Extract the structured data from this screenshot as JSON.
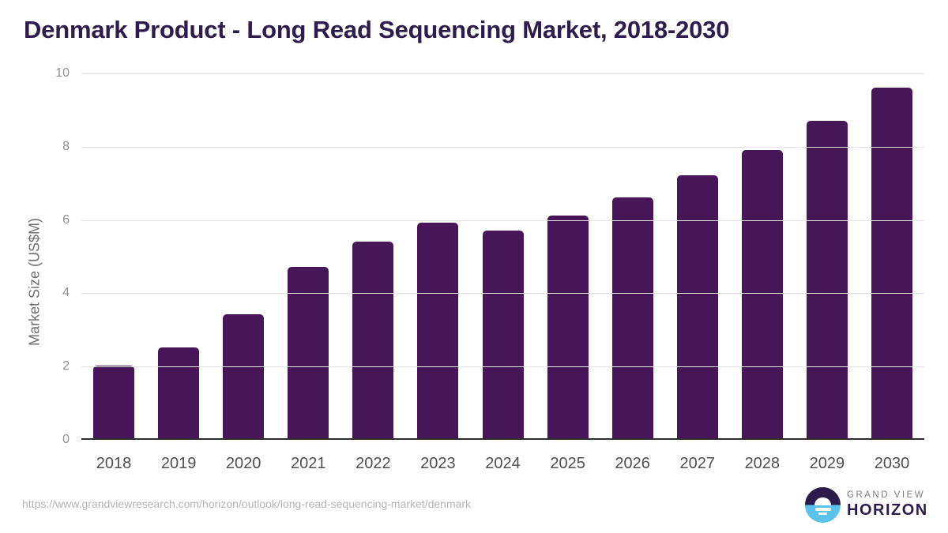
{
  "title": "Denmark Product - Long Read Sequencing Market, 2018-2030",
  "chart_data": {
    "type": "bar",
    "categories": [
      "2018",
      "2019",
      "2020",
      "2021",
      "2022",
      "2023",
      "2024",
      "2025",
      "2026",
      "2027",
      "2028",
      "2029",
      "2030"
    ],
    "values": [
      2.0,
      2.5,
      3.4,
      4.7,
      5.4,
      5.9,
      5.7,
      6.1,
      6.6,
      7.2,
      7.9,
      8.7,
      9.6
    ],
    "title": "Denmark Product - Long Read Sequencing Market, 2018-2030",
    "xlabel": "",
    "ylabel": "Market Size (US$M)",
    "ylim": [
      0,
      10
    ],
    "yticks": [
      0,
      2,
      4,
      6,
      8,
      10
    ],
    "grid": "horizontal",
    "legend": "none",
    "bar_color": "#471659"
  },
  "footer": {
    "source_url": "https://www.grandviewresearch.com/horizon/outlook/long-read-sequencing-market/denmark",
    "logo": {
      "top_text": "GRAND VIEW",
      "bottom_text": "HORIZON"
    }
  },
  "colors": {
    "title": "#2f1c4f",
    "bar": "#471659",
    "gridline": "#e4e4e4",
    "axis_line": "#2b2b2b",
    "y_tick": "#8f8f8f",
    "x_tick": "#4f4f4f",
    "url_text": "#b5b5b5",
    "logo_purple": "#2b1a4a",
    "logo_blue": "#5bc2ea"
  }
}
